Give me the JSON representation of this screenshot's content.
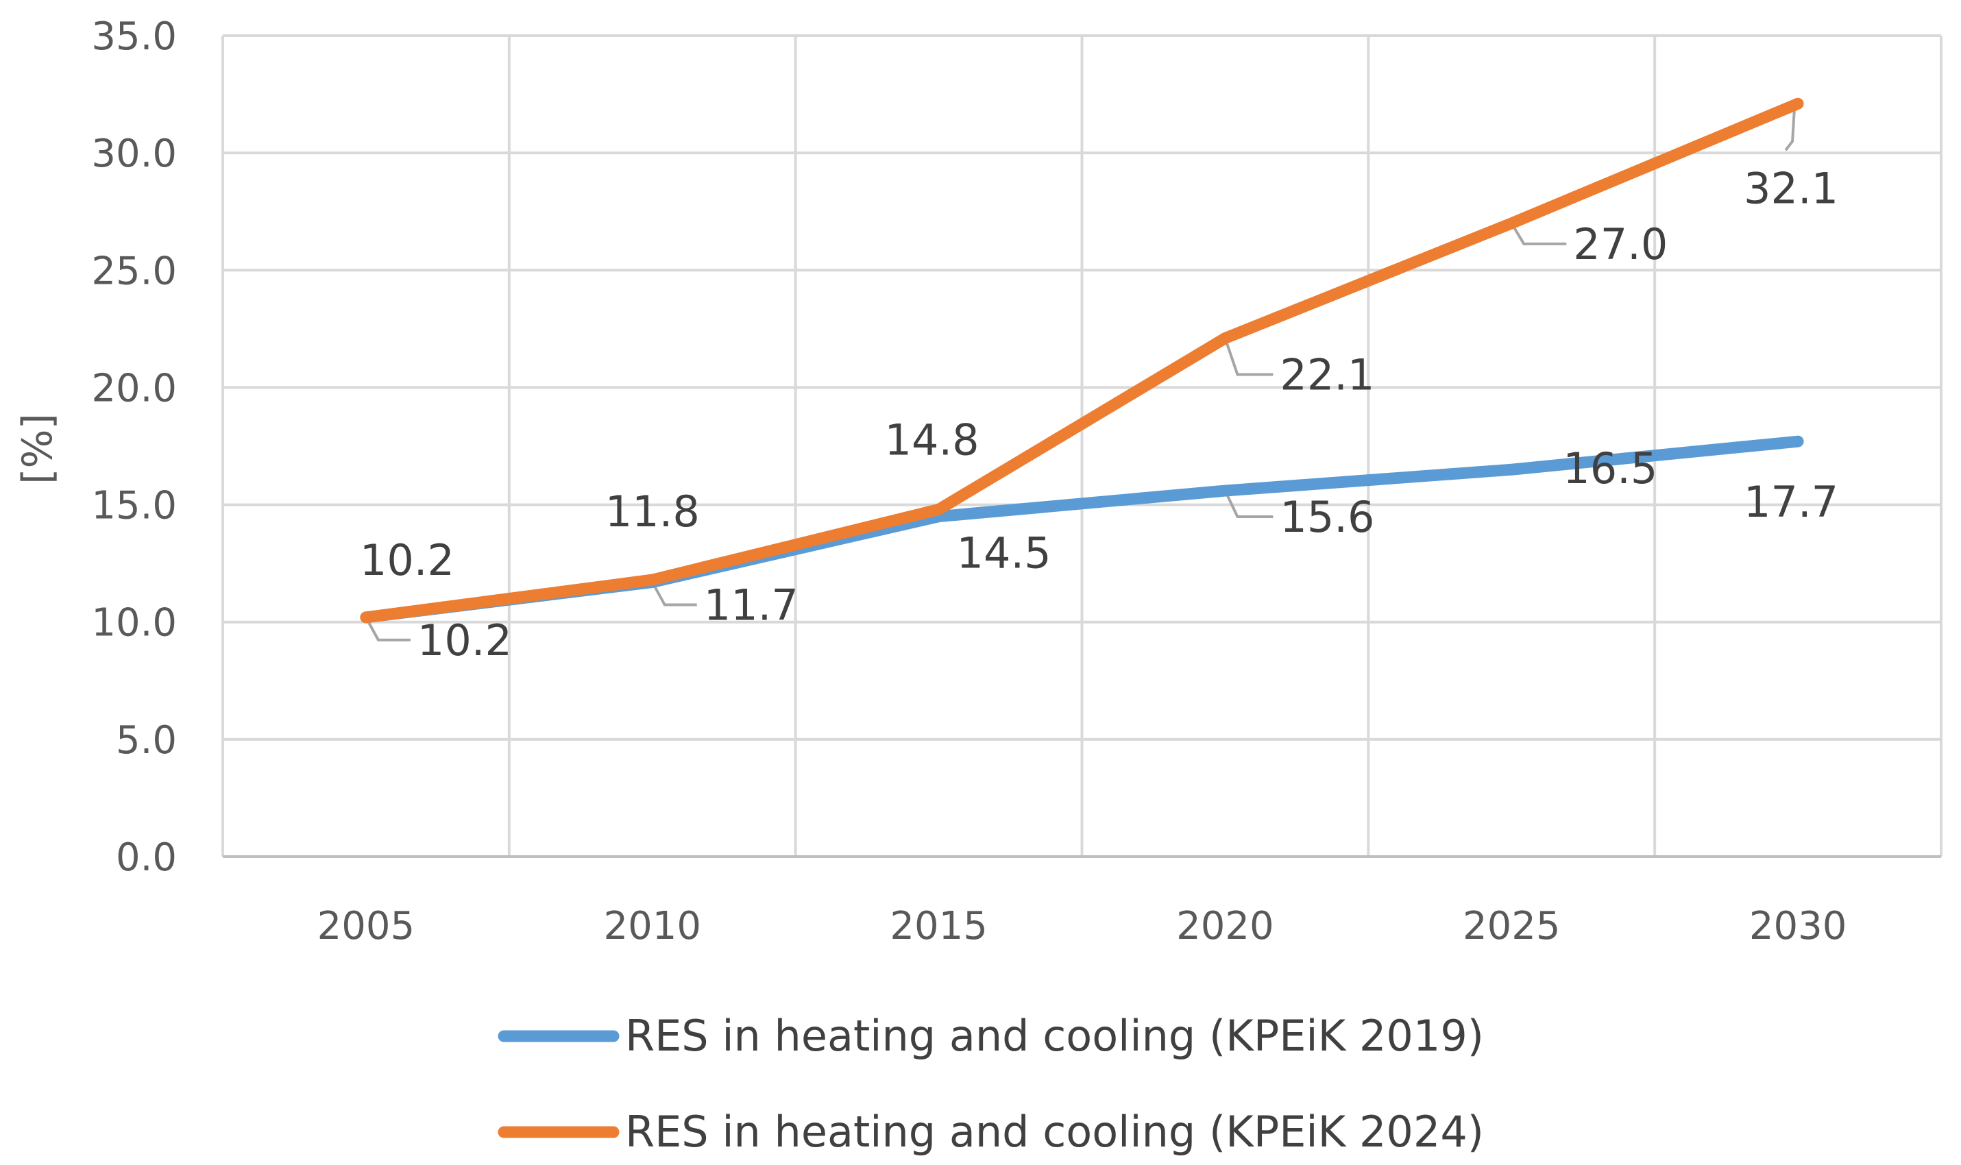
{
  "chart_data": {
    "type": "line",
    "title": "",
    "xlabel": "",
    "ylabel": "[%]",
    "categories": [
      "2005",
      "2010",
      "2015",
      "2020",
      "2025",
      "2030"
    ],
    "y_ticks": [
      "0.0",
      "5.0",
      "10.0",
      "15.0",
      "20.0",
      "25.0",
      "30.0",
      "35.0"
    ],
    "ylim": [
      0,
      35
    ],
    "grid": true,
    "legend_position": "bottom",
    "series": [
      {
        "name": "RES in heating and cooling (KPEiK 2019)",
        "color": "#5B9BD5",
        "values": [
          10.2,
          11.7,
          14.5,
          15.6,
          16.5,
          17.7
        ],
        "labels": [
          "10.2",
          "11.7",
          "14.5",
          "15.6",
          "16.5",
          "17.7"
        ]
      },
      {
        "name": "RES in heating and cooling (KPEiK 2024)",
        "color": "#ED7D31",
        "values": [
          10.2,
          11.8,
          14.8,
          22.1,
          27.0,
          32.1
        ],
        "labels": [
          "10.2",
          "11.8",
          "14.8",
          "22.1",
          "27.0",
          "32.1"
        ]
      }
    ]
  }
}
